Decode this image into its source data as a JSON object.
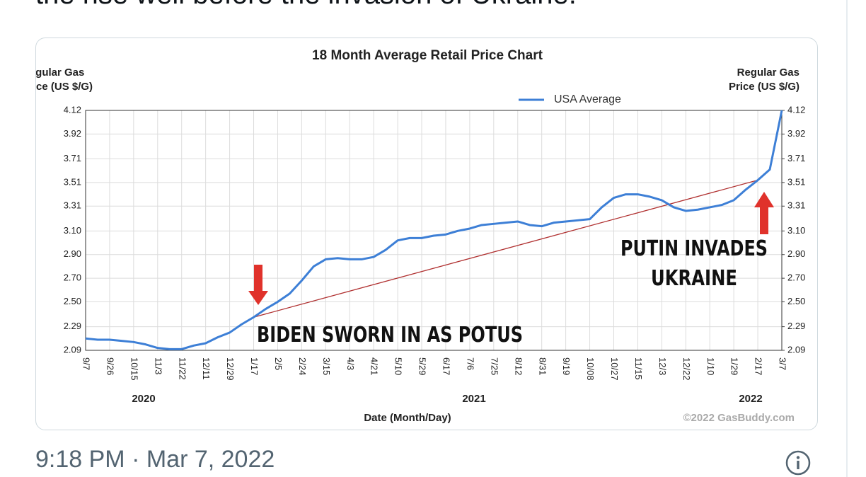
{
  "tweet": {
    "text": "the rise well before the invasion of Ukraine.",
    "timestamp": "9:18 PM · Mar 7, 2022"
  },
  "chart_data": {
    "type": "line",
    "title": "18 Month Average Retail Price Chart",
    "ylabel": "Regular Gas Price (US $/G)",
    "y2label": "Regular Gas Price (US $/G)",
    "xlabel": "Date (Month/Day)",
    "credit": "©2022 GasBuddy.com",
    "year_labels": [
      "2020",
      "2021",
      "2022"
    ],
    "annotations": [
      "BIDEN SWORN IN AS POTUS",
      "PUTIN INVADES UKRAINE"
    ],
    "categories": [
      "9/7",
      null,
      "9/26",
      null,
      "10/15",
      null,
      "11/3",
      null,
      "11/22",
      null,
      "12/11",
      null,
      "12/29",
      null,
      "1/17",
      null,
      "2/5",
      null,
      "2/24",
      null,
      "3/15",
      null,
      "4/3",
      null,
      "4/21",
      null,
      "5/10",
      null,
      "5/29",
      null,
      "6/17",
      null,
      "7/6",
      null,
      "7/25",
      null,
      "8/12",
      null,
      "8/31",
      null,
      "9/19",
      null,
      "10/08",
      null,
      "10/27",
      null,
      "11/15",
      null,
      "12/3",
      null,
      "12/22",
      null,
      "1/10",
      null,
      "1/29",
      null,
      "2/17",
      null,
      "3/7"
    ],
    "series": [
      {
        "name": "USA Average",
        "color": "#3d7fd6",
        "values": [
          2.19,
          2.18,
          2.18,
          2.17,
          2.16,
          2.14,
          2.11,
          2.1,
          2.1,
          2.13,
          2.15,
          2.2,
          2.24,
          2.31,
          2.37,
          2.44,
          2.5,
          2.57,
          2.68,
          2.8,
          2.86,
          2.87,
          2.86,
          2.86,
          2.88,
          2.94,
          3.02,
          3.04,
          3.04,
          3.06,
          3.07,
          3.1,
          3.12,
          3.15,
          3.16,
          3.17,
          3.18,
          3.15,
          3.14,
          3.17,
          3.18,
          3.19,
          3.2,
          3.3,
          3.38,
          3.41,
          3.41,
          3.39,
          3.36,
          3.3,
          3.27,
          3.28,
          3.3,
          3.32,
          3.36,
          3.45,
          3.53,
          3.62,
          4.12
        ]
      }
    ],
    "ylim": [
      2.09,
      4.12
    ],
    "yticks": [
      2.09,
      2.29,
      {
        "value": 2.5,
        "label": "2.50"
      },
      {
        "value": 2.7,
        "label": "2.70"
      },
      {
        "value": 2.9,
        "label": "2.90"
      },
      {
        "value": 3.1,
        "label": "3.10"
      },
      3.31,
      3.51,
      3.71,
      3.92,
      4.12
    ],
    "y2lim": [
      2.09,
      4.12
    ],
    "y2ticks": [
      2.09,
      2.29,
      {
        "value": 2.5,
        "label": "2.50"
      },
      {
        "value": 2.7,
        "label": "2.70"
      },
      {
        "value": 2.9,
        "label": "2.90"
      },
      {
        "value": 3.1,
        "label": "3.10"
      },
      3.31,
      3.51,
      3.71,
      3.92,
      4.12
    ],
    "grid": true,
    "legend": "top"
  }
}
